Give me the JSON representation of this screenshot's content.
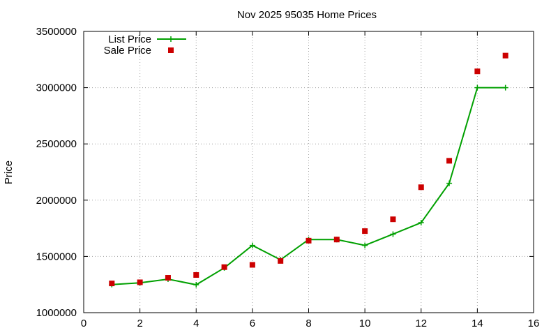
{
  "chart_data": {
    "type": "line",
    "title": "Nov 2025 95035 Home Prices",
    "xlabel": "",
    "ylabel": "Price",
    "xlim": [
      0,
      16
    ],
    "ylim": [
      1000000,
      3500000
    ],
    "xticks": [
      "0",
      "2",
      "4",
      "6",
      "8",
      "10",
      "12",
      "14",
      "16"
    ],
    "yticks": [
      "1000000",
      "1500000",
      "2000000",
      "2500000",
      "3000000",
      "3500000"
    ],
    "grid": true,
    "legend_position": "top-left",
    "x": [
      1,
      2,
      3,
      4,
      5,
      6,
      7,
      8,
      9,
      10,
      11,
      12,
      13,
      14,
      15
    ],
    "series": [
      {
        "name": "List Price",
        "style": "line-with-plus-markers",
        "color": "#00a000",
        "values": [
          1250000,
          1265000,
          1298000,
          1248000,
          1398000,
          1598000,
          1470000,
          1650000,
          1650000,
          1598000,
          1698000,
          1800000,
          2150000,
          3000000,
          3000000
        ]
      },
      {
        "name": "Sale Price",
        "style": "square-markers",
        "color": "#cc0000",
        "values": [
          1260000,
          1270000,
          1310000,
          1335000,
          1405000,
          1425000,
          1460000,
          1640000,
          1650000,
          1725000,
          1830000,
          2115000,
          2350000,
          3145000,
          3285000
        ]
      }
    ]
  }
}
